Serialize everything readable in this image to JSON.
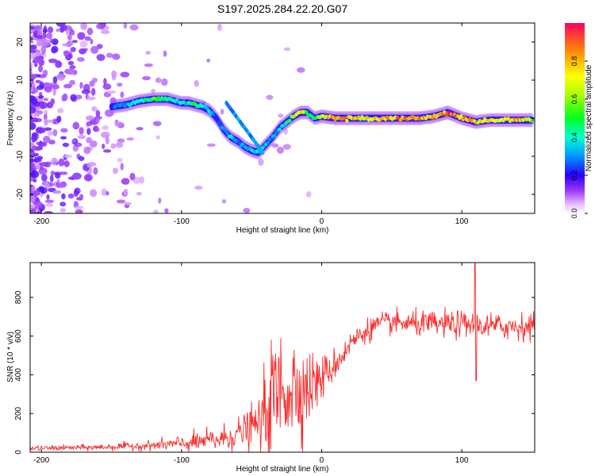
{
  "chart_data": [
    {
      "type": "heatmap",
      "title": "S197.2025.284.22.20.G07",
      "xlabel": "Height of straight line (km)",
      "ylabel": "Frequency (Hz)",
      "xlim": [
        -208,
        152
      ],
      "ylim": [
        -25,
        25
      ],
      "xticks": [
        -200,
        -100,
        0,
        100
      ],
      "yticks": [
        -20,
        -10,
        0,
        10,
        20
      ],
      "colorbar": {
        "label": "Normalized spectral amplitude",
        "range": [
          0,
          1
        ],
        "ticks": [
          0.0,
          0.2,
          0.4,
          0.6,
          0.8
        ]
      },
      "ridge": {
        "description": "dominant frequency track (Hz) vs height (km)",
        "x": [
          -150,
          -140,
          -130,
          -120,
          -110,
          -100,
          -95,
          -90,
          -85,
          -80,
          -75,
          -70,
          -65,
          -60,
          -55,
          -50,
          -45,
          -40,
          -35,
          -30,
          -25,
          -20,
          -15,
          -10,
          -5,
          0,
          10,
          20,
          30,
          40,
          50,
          60,
          70,
          80,
          90,
          100,
          110,
          120,
          130,
          140,
          150
        ],
        "y": [
          3,
          3.5,
          4.5,
          5,
          5,
          4,
          4,
          3.5,
          3,
          2,
          0,
          -3,
          -5,
          -6,
          -7.5,
          -8.5,
          -9,
          -7,
          -5,
          -2.5,
          -1,
          0.5,
          1.5,
          1.5,
          0,
          0.5,
          0,
          0,
          0,
          0,
          0,
          0,
          0,
          0.5,
          1.5,
          0,
          -1,
          -0.5,
          -0.5,
          -0.5,
          -0.5
        ],
        "amplitude": [
          0.25,
          0.3,
          0.4,
          0.5,
          0.45,
          0.35,
          0.38,
          0.45,
          0.4,
          0.35,
          0.25,
          0.3,
          0.35,
          0.3,
          0.3,
          0.35,
          0.4,
          0.35,
          0.3,
          0.35,
          0.4,
          0.6,
          0.75,
          0.55,
          0.45,
          0.7,
          0.85,
          0.8,
          0.7,
          0.75,
          0.8,
          0.9,
          0.8,
          0.75,
          0.9,
          0.8,
          0.75,
          0.7,
          0.65,
          0.8,
          0.6
        ]
      }
    },
    {
      "type": "line",
      "xlabel": "Height of straight line (km)",
      "ylabel": "SNR (10 * v/v)",
      "xlim": [
        -208,
        152
      ],
      "ylim": [
        0,
        980
      ],
      "xticks": [
        -200,
        -100,
        0,
        100
      ],
      "yticks": [
        0,
        200,
        400,
        600,
        800
      ],
      "series": [
        {
          "name": "SNR",
          "color": "#ff2a2a",
          "trend_x": [
            -208,
            -160,
            -120,
            -90,
            -70,
            -55,
            -45,
            -40,
            -35,
            -30,
            -25,
            -20,
            -15,
            -10,
            -5,
            0,
            5,
            10,
            15,
            20,
            30,
            40,
            50,
            60,
            80,
            100,
            120,
            150
          ],
          "trend_y": [
            20,
            25,
            35,
            50,
            70,
            110,
            150,
            200,
            280,
            320,
            330,
            340,
            330,
            330,
            360,
            380,
            420,
            460,
            500,
            560,
            620,
            660,
            670,
            665,
            660,
            660,
            650,
            650
          ],
          "noise": [
            6,
            8,
            12,
            25,
            35,
            45,
            60,
            120,
            150,
            160,
            150,
            140,
            120,
            100,
            80,
            60,
            50,
            40,
            35,
            30,
            30,
            30,
            30,
            30,
            35,
            35,
            35,
            35
          ],
          "spike": {
            "x": 109.5,
            "max": 980,
            "min": 370
          }
        }
      ]
    }
  ]
}
